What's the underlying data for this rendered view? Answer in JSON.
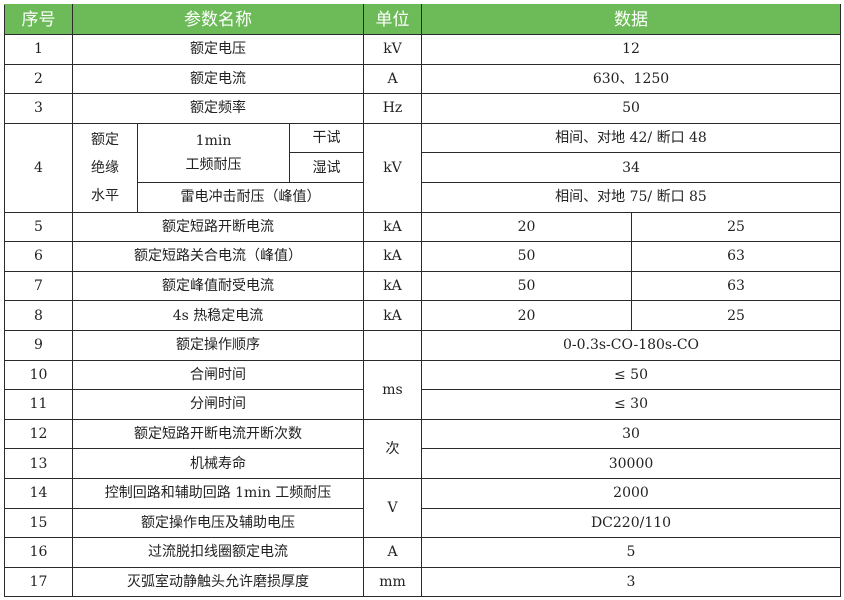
{
  "header": {
    "no": "序号",
    "name": "参数名称",
    "unit": "单位",
    "data": "数据"
  },
  "accent": "#6cbb58",
  "rows": [
    {
      "no": "1",
      "name": "额定电压",
      "unit": "kV",
      "value": "12"
    },
    {
      "no": "2",
      "name": "额定电流",
      "unit": "A",
      "value": "630、1250"
    },
    {
      "no": "3",
      "name": "额定频率",
      "unit": "Hz",
      "value": "50"
    },
    {
      "no": "4",
      "name_group": "额定\n绝缘\n水平",
      "name_group_lines": [
        "额定",
        "绝缘",
        "水平"
      ],
      "sub_name_1min": "1min",
      "sub_name_pf": "工频耐压",
      "dry": "干试",
      "wet": "湿试",
      "lightning": "雷电冲击耐压（峰值）",
      "unit": "kV",
      "value_dry": "相间、对地 42/ 断口 48",
      "value_wet": "34",
      "value_lightning": "相间、对地 75/ 断口 85"
    },
    {
      "no": "5",
      "name": "额定短路开断电流",
      "unit": "kA",
      "value_a": "20",
      "value_b": "25"
    },
    {
      "no": "6",
      "name": "额定短路关合电流（峰值）",
      "unit": "kA",
      "value_a": "50",
      "value_b": "63"
    },
    {
      "no": "7",
      "name": "额定峰值耐受电流",
      "unit": "kA",
      "value_a": "50",
      "value_b": "63"
    },
    {
      "no": "8",
      "name": "4s 热稳定电流",
      "unit": "kA",
      "value_a": "20",
      "value_b": "25"
    },
    {
      "no": "9",
      "name": "额定操作顺序",
      "unit": "",
      "value": "0-0.3s-CO-180s-CO"
    },
    {
      "no": "10",
      "name": "合闸时间",
      "unit": "ms",
      "value": "≤ 50"
    },
    {
      "no": "11",
      "name": "分闸时间",
      "value": "≤ 30"
    },
    {
      "no": "12",
      "name": "额定短路开断电流开断次数",
      "unit": "次",
      "value": "30"
    },
    {
      "no": "13",
      "name": "机械寿命",
      "value": "30000"
    },
    {
      "no": "14",
      "name": "控制回路和辅助回路 1min 工频耐压",
      "unit": "V",
      "value": "2000"
    },
    {
      "no": "15",
      "name": "额定操作电压及辅助电压",
      "value": "DC220/110"
    },
    {
      "no": "16",
      "name": "过流脱扣线圈额定电流",
      "unit": "A",
      "value": "5"
    },
    {
      "no": "17",
      "name": "灭弧室动静触头允许磨损厚度",
      "unit": "mm",
      "value": "3"
    }
  ]
}
